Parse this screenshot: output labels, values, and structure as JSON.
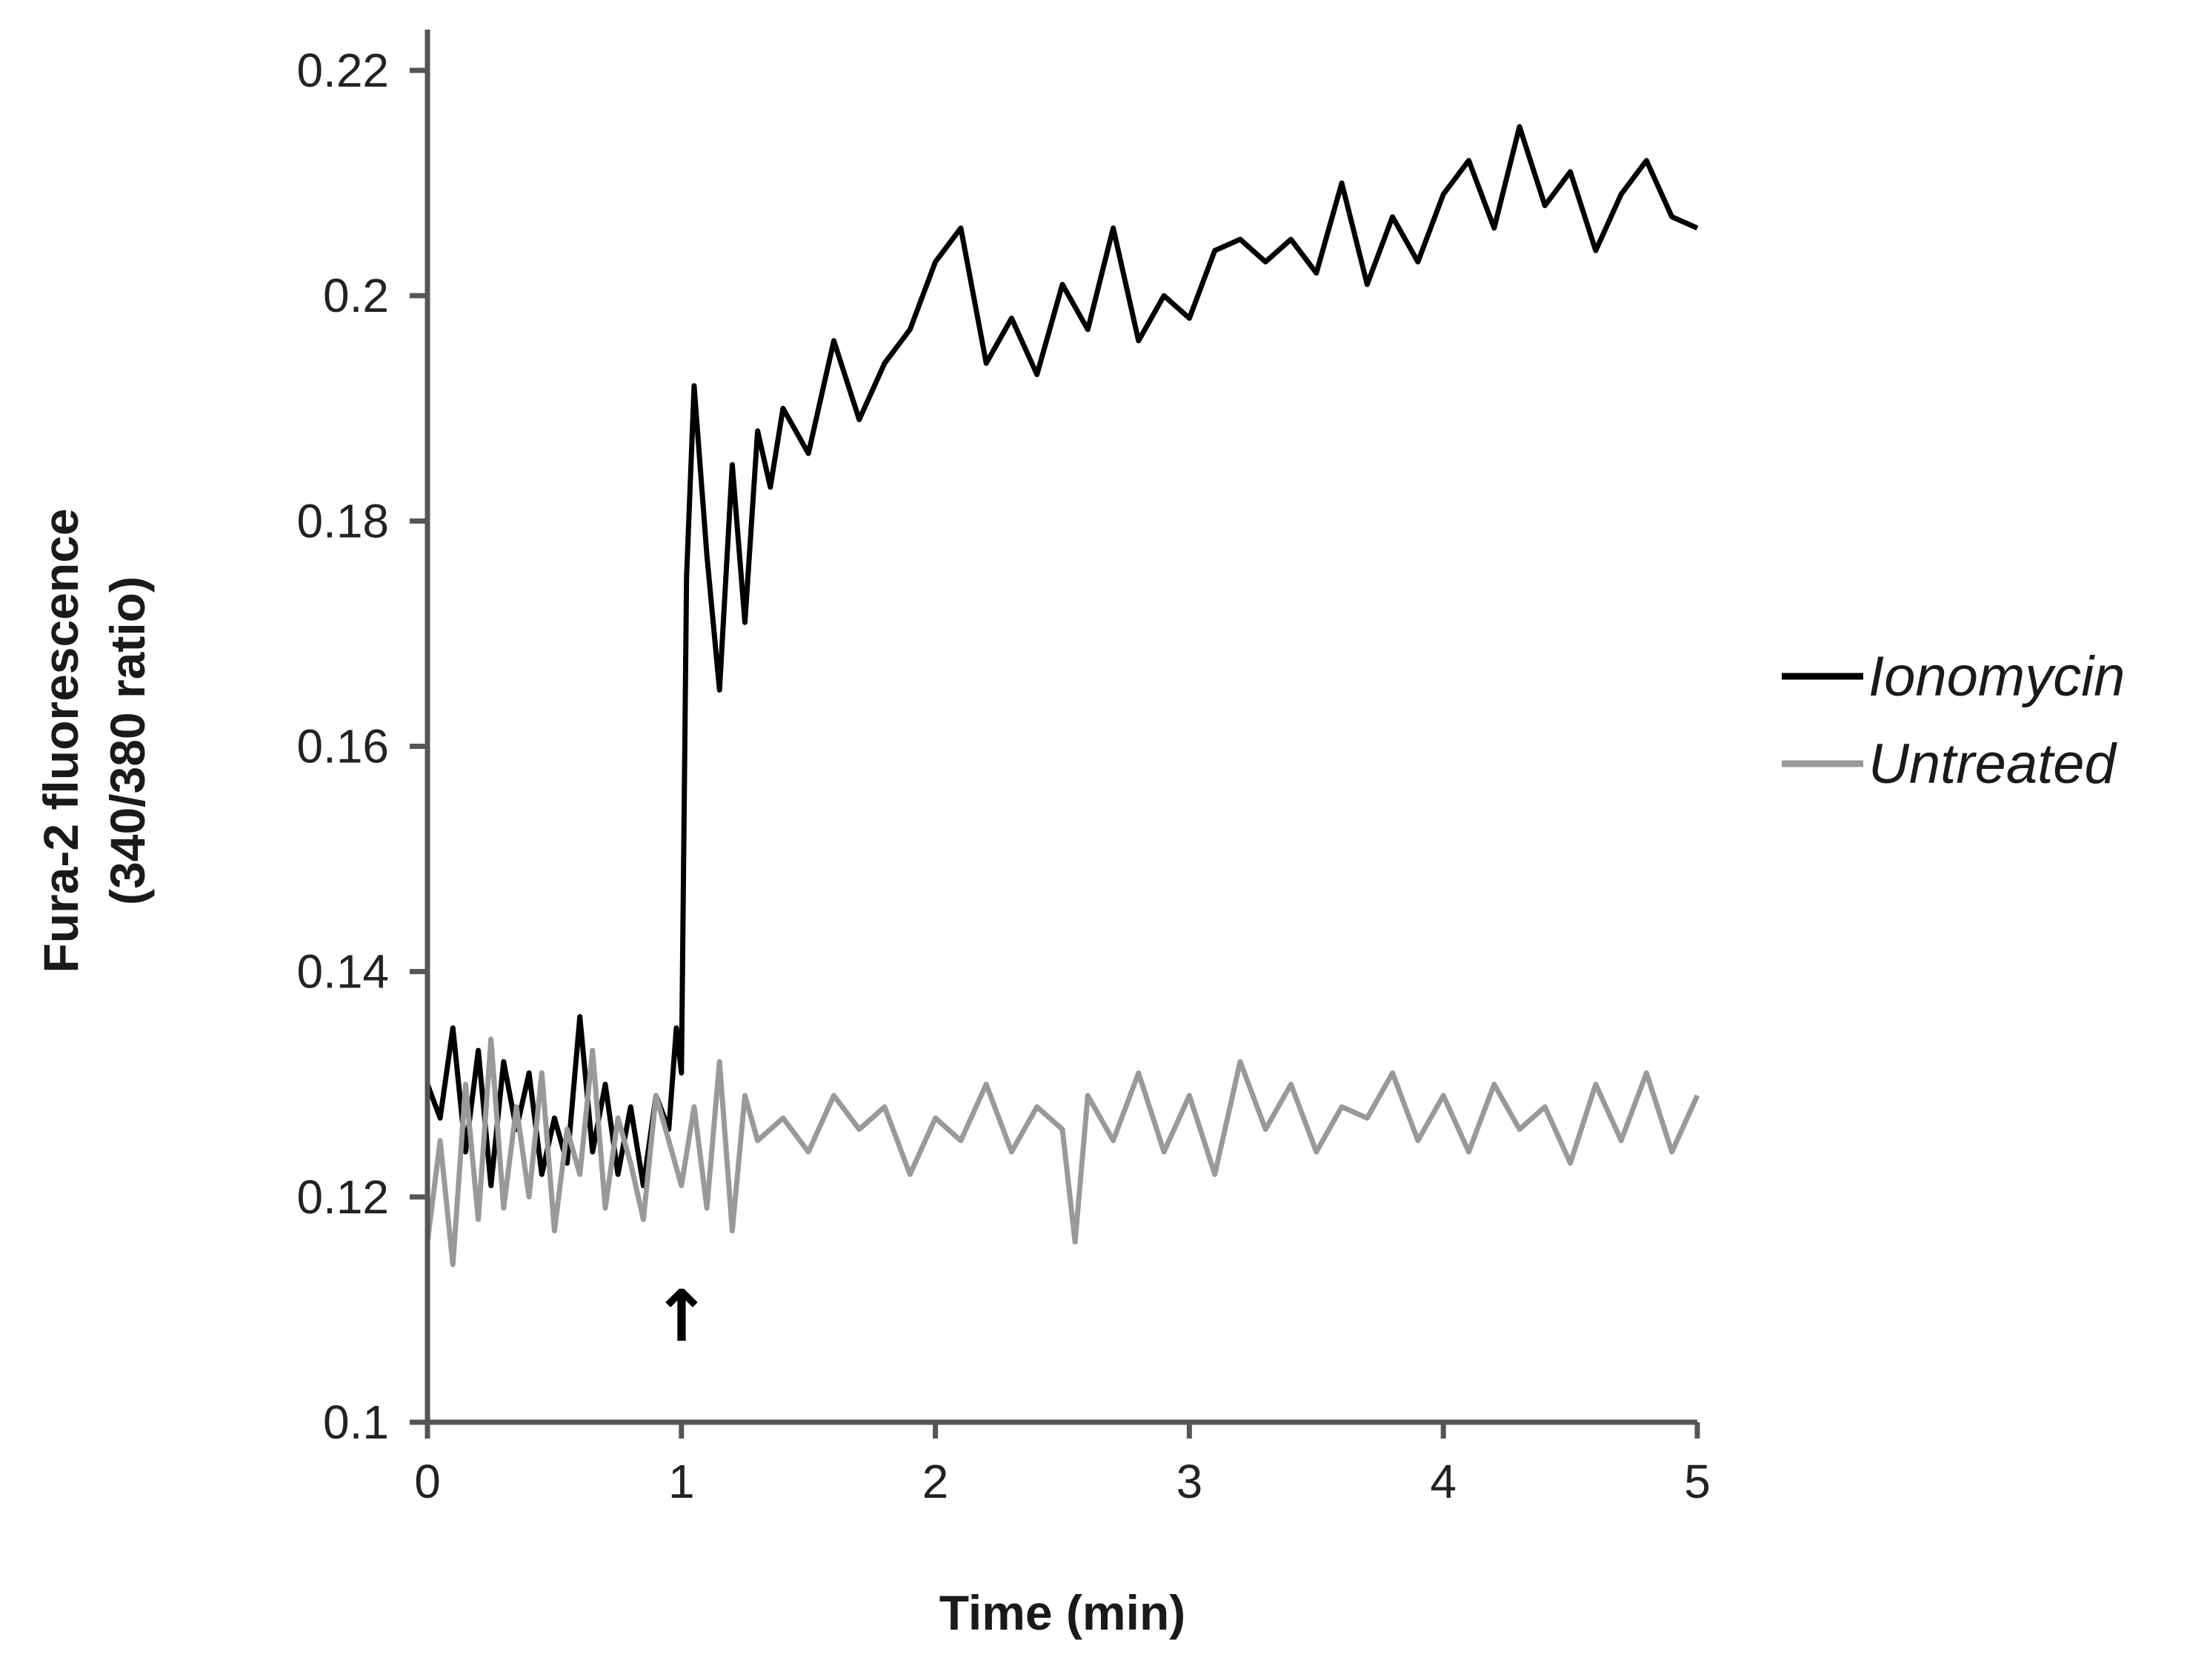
{
  "chart_data": {
    "type": "line",
    "title": "",
    "xlabel": "Time (min)",
    "ylabel_line1": "Fura-2 fluorescence",
    "ylabel_line2": "(340/380 ratio)",
    "xlim": [
      0,
      5
    ],
    "ylim": [
      0.1,
      0.22
    ],
    "x_ticks": [
      0,
      1,
      2,
      3,
      4,
      5
    ],
    "x_tick_labels": [
      "0",
      "1",
      "2",
      "3",
      "4",
      "5"
    ],
    "y_ticks": [
      0.1,
      0.12,
      0.14,
      0.16,
      0.18,
      0.2,
      0.22
    ],
    "y_tick_labels": [
      "0.1",
      "0.12",
      "0.14",
      "0.16",
      "0.18",
      "0.2",
      "0.22"
    ],
    "grid": false,
    "legend_position": "right",
    "annotation": {
      "symbol": "↑",
      "x": 1.0,
      "meaning": "treatment added"
    },
    "series": [
      {
        "name": "Ionomycin",
        "color": "#000000",
        "x": [
          0,
          0.05,
          0.1,
          0.15,
          0.2,
          0.25,
          0.3,
          0.35,
          0.4,
          0.45,
          0.5,
          0.55,
          0.6,
          0.65,
          0.7,
          0.75,
          0.8,
          0.85,
          0.9,
          0.95,
          0.98,
          1.0,
          1.02,
          1.05,
          1.1,
          1.15,
          1.2,
          1.25,
          1.3,
          1.35,
          1.4,
          1.5,
          1.6,
          1.7,
          1.8,
          1.9,
          2.0,
          2.1,
          2.2,
          2.3,
          2.4,
          2.5,
          2.6,
          2.7,
          2.8,
          2.9,
          3.0,
          3.1,
          3.2,
          3.3,
          3.4,
          3.5,
          3.6,
          3.7,
          3.8,
          3.9,
          4.0,
          4.1,
          4.2,
          4.3,
          4.4,
          4.5,
          4.6,
          4.7,
          4.8,
          4.9,
          5.0
        ],
        "y": [
          0.13,
          0.127,
          0.135,
          0.124,
          0.133,
          0.121,
          0.132,
          0.126,
          0.131,
          0.122,
          0.127,
          0.123,
          0.136,
          0.124,
          0.13,
          0.122,
          0.128,
          0.121,
          0.129,
          0.126,
          0.135,
          0.131,
          0.175,
          0.192,
          0.177,
          0.165,
          0.185,
          0.171,
          0.188,
          0.183,
          0.19,
          0.186,
          0.196,
          0.189,
          0.194,
          0.197,
          0.203,
          0.206,
          0.194,
          0.198,
          0.193,
          0.201,
          0.197,
          0.206,
          0.196,
          0.2,
          0.198,
          0.204,
          0.205,
          0.203,
          0.205,
          0.202,
          0.21,
          0.201,
          0.207,
          0.203,
          0.209,
          0.212,
          0.206,
          0.215,
          0.208,
          0.211,
          0.204,
          0.209,
          0.212,
          0.207,
          0.206
        ]
      },
      {
        "name": "Untreated",
        "color": "#999999",
        "x": [
          0,
          0.05,
          0.1,
          0.15,
          0.2,
          0.25,
          0.3,
          0.35,
          0.4,
          0.45,
          0.5,
          0.55,
          0.6,
          0.65,
          0.7,
          0.75,
          0.8,
          0.85,
          0.9,
          0.95,
          1.0,
          1.05,
          1.1,
          1.15,
          1.2,
          1.25,
          1.3,
          1.4,
          1.5,
          1.6,
          1.7,
          1.8,
          1.9,
          2.0,
          2.1,
          2.2,
          2.3,
          2.4,
          2.5,
          2.55,
          2.6,
          2.7,
          2.8,
          2.9,
          3.0,
          3.1,
          3.2,
          3.3,
          3.4,
          3.5,
          3.6,
          3.7,
          3.8,
          3.9,
          4.0,
          4.1,
          4.2,
          4.3,
          4.4,
          4.5,
          4.6,
          4.7,
          4.8,
          4.9,
          5.0
        ],
        "y": [
          0.116,
          0.125,
          0.114,
          0.13,
          0.118,
          0.134,
          0.119,
          0.128,
          0.12,
          0.131,
          0.117,
          0.126,
          0.122,
          0.133,
          0.119,
          0.127,
          0.123,
          0.118,
          0.129,
          0.125,
          0.121,
          0.128,
          0.119,
          0.132,
          0.117,
          0.129,
          0.125,
          0.127,
          0.124,
          0.129,
          0.126,
          0.128,
          0.122,
          0.127,
          0.125,
          0.13,
          0.124,
          0.128,
          0.126,
          0.116,
          0.129,
          0.125,
          0.131,
          0.124,
          0.129,
          0.122,
          0.132,
          0.126,
          0.13,
          0.124,
          0.128,
          0.127,
          0.131,
          0.125,
          0.129,
          0.124,
          0.13,
          0.126,
          0.128,
          0.123,
          0.13,
          0.125,
          0.131,
          0.124,
          0.129
        ]
      }
    ]
  }
}
